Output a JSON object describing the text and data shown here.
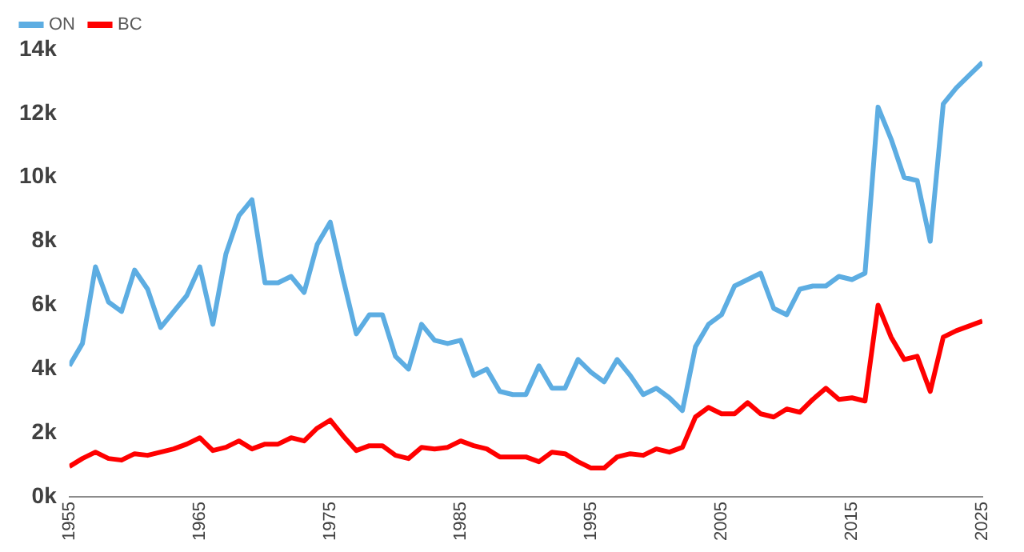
{
  "chart_data": {
    "type": "line",
    "x": [
      1955,
      1956,
      1957,
      1958,
      1959,
      1960,
      1961,
      1962,
      1963,
      1964,
      1965,
      1966,
      1967,
      1968,
      1969,
      1970,
      1971,
      1972,
      1973,
      1974,
      1975,
      1976,
      1977,
      1978,
      1979,
      1980,
      1981,
      1982,
      1983,
      1984,
      1985,
      1986,
      1987,
      1988,
      1989,
      1990,
      1991,
      1992,
      1993,
      1994,
      1995,
      1996,
      1997,
      1998,
      1999,
      2000,
      2001,
      2002,
      2003,
      2004,
      2005,
      2006,
      2007,
      2008,
      2009,
      2010,
      2011,
      2012,
      2013,
      2014,
      2015,
      2016,
      2017,
      2018,
      2019,
      2020,
      2021,
      2022,
      2023,
      2024,
      2025
    ],
    "series": [
      {
        "name": "ON",
        "color": "#5dade2",
        "values": [
          4100,
          4800,
          7200,
          6100,
          5800,
          7100,
          6500,
          5300,
          5800,
          6300,
          7200,
          5400,
          7600,
          8800,
          9300,
          6700,
          6700,
          6900,
          6400,
          7900,
          8600,
          6800,
          5100,
          5700,
          5700,
          4400,
          4000,
          5400,
          4900,
          4800,
          4900,
          3800,
          4000,
          3300,
          3200,
          3200,
          4100,
          3400,
          3400,
          4300,
          3900,
          3600,
          4300,
          3800,
          3200,
          3400,
          3100,
          2700,
          4700,
          5400,
          5700,
          6600,
          6800,
          7000,
          5900,
          5700,
          6500,
          6600,
          6600,
          6900,
          6800,
          7000,
          12200,
          11200,
          10000,
          9900,
          8000,
          12300,
          12800,
          13200,
          13600
        ]
      },
      {
        "name": "BC",
        "color": "#ff0000",
        "values": [
          950,
          1200,
          1400,
          1200,
          1150,
          1350,
          1300,
          1400,
          1500,
          1650,
          1850,
          1450,
          1550,
          1750,
          1500,
          1650,
          1650,
          1850,
          1750,
          2150,
          2400,
          1900,
          1450,
          1600,
          1600,
          1300,
          1200,
          1550,
          1500,
          1550,
          1750,
          1600,
          1500,
          1250,
          1250,
          1250,
          1100,
          1400,
          1350,
          1100,
          900,
          900,
          1250,
          1350,
          1300,
          1500,
          1400,
          1550,
          2500,
          2800,
          2600,
          2600,
          2950,
          2600,
          2500,
          2750,
          2650,
          3050,
          3400,
          3050,
          3100,
          3000,
          6000,
          5000,
          4300,
          4400,
          3300,
          5000,
          5200,
          5350,
          5500
        ]
      }
    ],
    "xlim": [
      1955,
      2025
    ],
    "xticks": [
      1955,
      1965,
      1975,
      1985,
      1995,
      2005,
      2015,
      2025
    ],
    "ylim": [
      0,
      14000
    ],
    "yticks": [
      {
        "value": 0,
        "label": "0k"
      },
      {
        "value": 2000,
        "label": "2k"
      },
      {
        "value": 4000,
        "label": "4k"
      },
      {
        "value": 6000,
        "label": "6k"
      },
      {
        "value": 8000,
        "label": "8k"
      },
      {
        "value": 10000,
        "label": "10k"
      },
      {
        "value": 12000,
        "label": "12k"
      },
      {
        "value": 14000,
        "label": "14k"
      }
    ],
    "grid": false,
    "legend": "top left",
    "marker": "none",
    "line_style": "solid"
  }
}
